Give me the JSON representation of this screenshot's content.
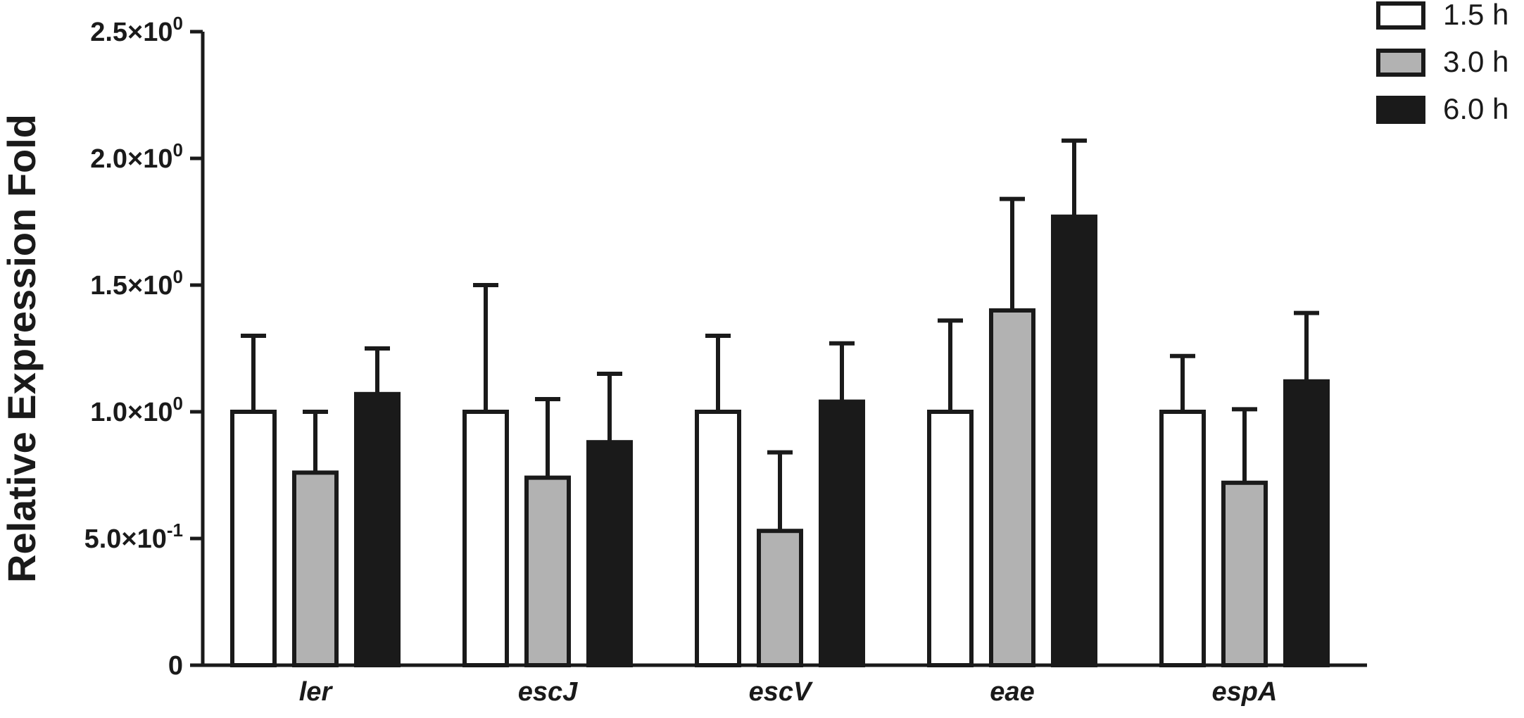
{
  "chart_data": {
    "type": "bar",
    "title": "",
    "xlabel": "",
    "ylabel": "Relative Expression Fold",
    "ylim": [
      0,
      2.5
    ],
    "y_ticks": [
      {
        "value": 0,
        "label": "0",
        "mantissa": "0",
        "exponent": ""
      },
      {
        "value": 0.5,
        "label": "5.0×10-1",
        "mantissa": "5.0×10",
        "exponent": "-1"
      },
      {
        "value": 1.0,
        "label": "1.0×100",
        "mantissa": "1.0×10",
        "exponent": "0"
      },
      {
        "value": 1.5,
        "label": "1.5×100",
        "mantissa": "1.5×10",
        "exponent": "0"
      },
      {
        "value": 2.0,
        "label": "2.0×100",
        "mantissa": "2.0×10",
        "exponent": "0"
      },
      {
        "value": 2.5,
        "label": "2.5×100",
        "mantissa": "2.5×10",
        "exponent": "0"
      }
    ],
    "categories": [
      "ler",
      "escJ",
      "escV",
      "eae",
      "espA"
    ],
    "series": [
      {
        "name": "1.5 h",
        "color": "#ffffff",
        "values": [
          1.0,
          1.0,
          1.0,
          1.0,
          1.0
        ],
        "errors": [
          0.3,
          0.5,
          0.3,
          0.36,
          0.22
        ]
      },
      {
        "name": "3.0 h",
        "color": "#b2b2b2",
        "values": [
          0.76,
          0.74,
          0.53,
          1.4,
          0.72
        ],
        "errors": [
          0.24,
          0.31,
          0.31,
          0.44,
          0.29
        ]
      },
      {
        "name": "6.0 h",
        "color": "#1a1a1a",
        "values": [
          1.07,
          0.88,
          1.04,
          1.77,
          1.12
        ],
        "errors": [
          0.18,
          0.27,
          0.23,
          0.3,
          0.27
        ]
      }
    ],
    "legend_position": "top-right",
    "grid": false
  }
}
